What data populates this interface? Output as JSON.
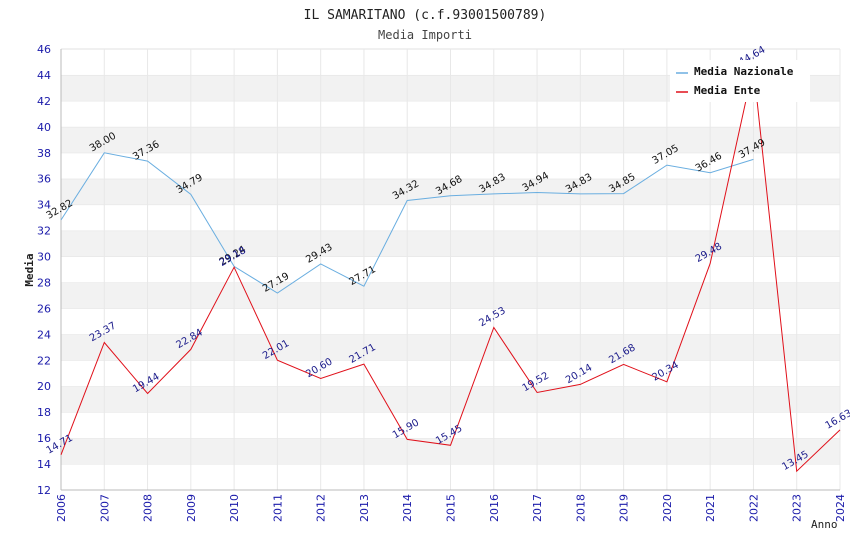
{
  "chart_data": {
    "type": "line",
    "title": "IL SAMARITANO (c.f.93001500789)",
    "subtitle": "Media Importi",
    "xlabel": "Anno",
    "ylabel": "Media",
    "ylim": [
      12,
      46
    ],
    "yticks": [
      "12",
      "14",
      "16",
      "18",
      "20",
      "22",
      "24",
      "26",
      "28",
      "30",
      "32",
      "34",
      "36",
      "38",
      "40",
      "42",
      "44",
      "46"
    ],
    "categories": [
      "2006",
      "2007",
      "2008",
      "2009",
      "2010",
      "2011",
      "2012",
      "2013",
      "2014",
      "2015",
      "2016",
      "2017",
      "2018",
      "2019",
      "2020",
      "2021",
      "2022",
      "2023",
      "2024"
    ],
    "legend_position": "top-right",
    "series": [
      {
        "name": "Media Nazionale",
        "color": "#6aaee0",
        "label_color": "#111111",
        "values": [
          32.82,
          38.0,
          37.36,
          34.79,
          29.24,
          27.19,
          29.43,
          27.71,
          34.32,
          34.68,
          34.83,
          34.94,
          34.83,
          34.85,
          37.05,
          36.46,
          37.49,
          null,
          null
        ],
        "labels": [
          "32.82",
          "38.00",
          "37.36",
          "34.79",
          "29.24",
          "27.19",
          "29.43",
          "27.71",
          "34.32",
          "34.68",
          "34.83",
          "34.94",
          "34.83",
          "34.85",
          "37.05",
          "36.46",
          "37.49",
          "",
          ""
        ]
      },
      {
        "name": "Media Ente",
        "color": "#e0101a",
        "label_color": "#1a1a8a",
        "values": [
          14.71,
          23.37,
          19.44,
          22.84,
          29.18,
          22.01,
          20.6,
          21.71,
          15.9,
          15.45,
          24.53,
          19.52,
          20.14,
          21.68,
          20.34,
          29.48,
          44.64,
          13.45,
          16.63
        ],
        "labels": [
          "14.71",
          "23.37",
          "19.44",
          "22.84",
          "29.18",
          "22.01",
          "20.60",
          "21.71",
          "15.90",
          "15.45",
          "24.53",
          "19.52",
          "20.14",
          "21.68",
          "20.34",
          "29.48",
          "44.64",
          "13.45",
          "16.63"
        ]
      }
    ]
  }
}
